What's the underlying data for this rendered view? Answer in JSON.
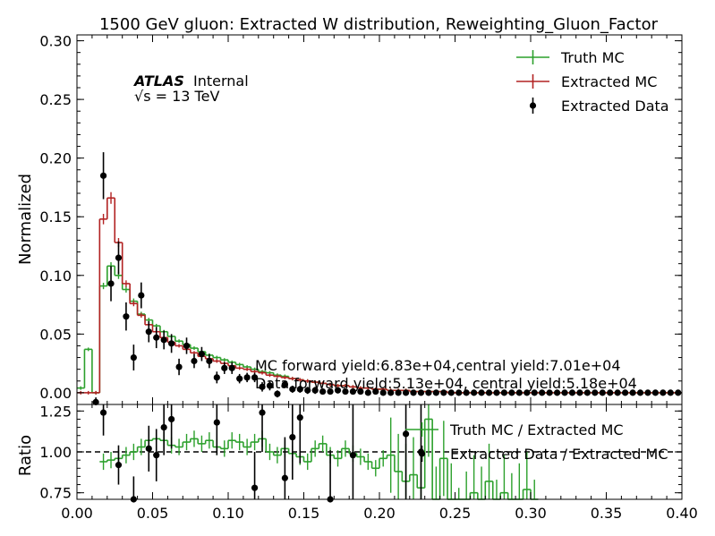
{
  "chart_data": [
    {
      "type": "line",
      "title": "1500 GeV gluon: Extracted W distribution, Reweighting_Gluon_Factor",
      "xlabel": "",
      "ylabel": "Normalized",
      "xlim": [
        0.0,
        0.4
      ],
      "ylim": [
        -0.01,
        0.305
      ],
      "xticks": [
        "0.00",
        "0.05",
        "0.10",
        "0.15",
        "0.20",
        "0.25",
        "0.30",
        "0.35",
        "0.40"
      ],
      "yticks": [
        "0.00",
        "0.05",
        "0.10",
        "0.15",
        "0.20",
        "0.25",
        "0.30"
      ],
      "grid": false,
      "legend_position": "top-right",
      "atlas_label": "ATLAS",
      "atlas_status": "Internal",
      "energy_label": "√s = 13 TeV",
      "annotations": [
        "MC forward yield:6.83e+04,central yield:7.01e+04",
        "Data forward yield:5.13e+04, central yield:5.18e+04"
      ],
      "bin_edges": [
        0.0,
        0.005,
        0.01,
        0.015,
        0.02,
        0.025,
        0.03,
        0.035,
        0.04,
        0.045,
        0.05,
        0.055,
        0.06,
        0.065,
        0.07,
        0.075,
        0.08,
        0.085,
        0.09,
        0.095,
        0.1,
        0.105,
        0.11,
        0.115,
        0.12,
        0.125,
        0.13,
        0.135,
        0.14,
        0.145,
        0.15,
        0.155,
        0.16,
        0.165,
        0.17,
        0.175,
        0.18,
        0.185,
        0.19,
        0.195,
        0.2,
        0.205,
        0.21,
        0.215,
        0.22,
        0.225,
        0.23,
        0.235,
        0.24,
        0.245,
        0.25,
        0.255,
        0.26,
        0.265,
        0.27,
        0.275,
        0.28,
        0.285,
        0.29,
        0.295,
        0.3,
        0.305,
        0.31,
        0.315,
        0.32,
        0.325,
        0.33,
        0.335,
        0.34,
        0.345,
        0.35,
        0.355,
        0.36,
        0.365,
        0.37,
        0.375,
        0.38,
        0.385,
        0.39,
        0.395,
        0.4
      ],
      "series": [
        {
          "name": "Truth MC",
          "color": "#2ca02c",
          "style": "step",
          "values": [
            0.004,
            0.037,
            0.0,
            0.091,
            0.108,
            0.1,
            0.088,
            0.078,
            0.067,
            0.062,
            0.057,
            0.052,
            0.048,
            0.044,
            0.041,
            0.038,
            0.035,
            0.032,
            0.03,
            0.028,
            0.026,
            0.024,
            0.022,
            0.02,
            0.018,
            0.017,
            0.015,
            0.014,
            0.012,
            0.011,
            0.01,
            0.009,
            0.008,
            0.007,
            0.006,
            0.006,
            0.005,
            0.004,
            0.004,
            0.003,
            0.003,
            0.002,
            0.002,
            0.002,
            0.001,
            0.001,
            0.001,
            0.001,
            0.001,
            0.0,
            0.0,
            0.0,
            0.0,
            0.0,
            0.0,
            0.0,
            0.0,
            0.0,
            0.0,
            0.0,
            0.0,
            0.0,
            0.0,
            0.0,
            0.0,
            0.0,
            0.0,
            0.0,
            0.0,
            0.0,
            0.0,
            0.0,
            0.0,
            0.0,
            0.0,
            0.0,
            0.0,
            0.0,
            0.0,
            0.0
          ]
        },
        {
          "name": "Extracted MC",
          "color": "#b22222",
          "style": "step",
          "values": [
            0.0,
            0.0,
            0.0,
            0.148,
            0.166,
            0.128,
            0.093,
            0.076,
            0.066,
            0.058,
            0.052,
            0.047,
            0.043,
            0.04,
            0.037,
            0.034,
            0.031,
            0.029,
            0.027,
            0.025,
            0.023,
            0.021,
            0.02,
            0.018,
            0.017,
            0.015,
            0.014,
            0.013,
            0.012,
            0.011,
            0.01,
            0.009,
            0.008,
            0.007,
            0.006,
            0.006,
            0.005,
            0.004,
            0.004,
            0.003,
            0.003,
            0.002,
            0.002,
            0.002,
            0.001,
            0.001,
            0.001,
            0.001,
            0.001,
            0.0,
            0.0,
            0.0,
            0.0,
            0.0,
            0.0,
            0.0,
            0.0,
            0.0,
            0.0,
            0.0,
            0.0,
            0.0,
            0.0,
            0.0,
            0.0,
            0.0,
            0.0,
            0.0,
            0.0,
            0.0,
            0.0,
            0.0,
            0.0,
            0.0,
            0.0,
            0.0,
            0.0,
            0.0,
            0.0,
            0.0
          ]
        },
        {
          "name": "Extracted Data",
          "color": "#000000",
          "style": "points",
          "points": [
            {
              "x": 0.0125,
              "y": -0.008,
              "err": 0.004
            },
            {
              "x": 0.0175,
              "y": 0.185,
              "err": 0.02
            },
            {
              "x": 0.0225,
              "y": 0.093,
              "err": 0.015
            },
            {
              "x": 0.0275,
              "y": 0.115,
              "err": 0.014
            },
            {
              "x": 0.0325,
              "y": 0.065,
              "err": 0.012
            },
            {
              "x": 0.0375,
              "y": 0.03,
              "err": 0.011
            },
            {
              "x": 0.0425,
              "y": 0.083,
              "err": 0.011
            },
            {
              "x": 0.0475,
              "y": 0.052,
              "err": 0.009
            },
            {
              "x": 0.0525,
              "y": 0.047,
              "err": 0.009
            },
            {
              "x": 0.0575,
              "y": 0.045,
              "err": 0.008
            },
            {
              "x": 0.0625,
              "y": 0.042,
              "err": 0.008
            },
            {
              "x": 0.0675,
              "y": 0.022,
              "err": 0.007
            },
            {
              "x": 0.0725,
              "y": 0.04,
              "err": 0.007
            },
            {
              "x": 0.0775,
              "y": 0.027,
              "err": 0.006
            },
            {
              "x": 0.0825,
              "y": 0.033,
              "err": 0.006
            },
            {
              "x": 0.0875,
              "y": 0.027,
              "err": 0.006
            },
            {
              "x": 0.0925,
              "y": 0.013,
              "err": 0.005
            },
            {
              "x": 0.0975,
              "y": 0.021,
              "err": 0.005
            },
            {
              "x": 0.1025,
              "y": 0.021,
              "err": 0.005
            },
            {
              "x": 0.1075,
              "y": 0.012,
              "err": 0.004
            },
            {
              "x": 0.1125,
              "y": 0.013,
              "err": 0.004
            },
            {
              "x": 0.1175,
              "y": 0.013,
              "err": 0.004
            },
            {
              "x": 0.1225,
              "y": 0.005,
              "err": 0.004
            },
            {
              "x": 0.1275,
              "y": 0.006,
              "err": 0.004
            },
            {
              "x": 0.1325,
              "y": -0.001,
              "err": 0.003
            },
            {
              "x": 0.1375,
              "y": 0.007,
              "err": 0.003
            },
            {
              "x": 0.1425,
              "y": 0.003,
              "err": 0.003
            },
            {
              "x": 0.1475,
              "y": 0.003,
              "err": 0.003
            },
            {
              "x": 0.1525,
              "y": 0.002,
              "err": 0.003
            },
            {
              "x": 0.1575,
              "y": 0.002,
              "err": 0.003
            },
            {
              "x": 0.1625,
              "y": 0.001,
              "err": 0.002
            },
            {
              "x": 0.1675,
              "y": 0.001,
              "err": 0.002
            },
            {
              "x": 0.1725,
              "y": 0.002,
              "err": 0.002
            },
            {
              "x": 0.1775,
              "y": 0.001,
              "err": 0.002
            },
            {
              "x": 0.1825,
              "y": 0.001,
              "err": 0.002
            },
            {
              "x": 0.1875,
              "y": 0.001,
              "err": 0.002
            },
            {
              "x": 0.1925,
              "y": 0.0,
              "err": 0.002
            },
            {
              "x": 0.1975,
              "y": 0.001,
              "err": 0.002
            },
            {
              "x": 0.2025,
              "y": 0.0,
              "err": 0.002
            },
            {
              "x": 0.2075,
              "y": 0.0,
              "err": 0.002
            },
            {
              "x": 0.2125,
              "y": 0.0,
              "err": 0.002
            },
            {
              "x": 0.2175,
              "y": 0.0,
              "err": 0.002
            },
            {
              "x": 0.2225,
              "y": 0.0,
              "err": 0.002
            },
            {
              "x": 0.2275,
              "y": 0.0,
              "err": 0.002
            },
            {
              "x": 0.2325,
              "y": 0.0,
              "err": 0.002
            },
            {
              "x": 0.2375,
              "y": 0.0,
              "err": 0.002
            },
            {
              "x": 0.2425,
              "y": 0.0,
              "err": 0.002
            },
            {
              "x": 0.2475,
              "y": 0.0,
              "err": 0.002
            },
            {
              "x": 0.2525,
              "y": 0.0,
              "err": 0.002
            },
            {
              "x": 0.2575,
              "y": 0.0,
              "err": 0.002
            },
            {
              "x": 0.2625,
              "y": 0.0,
              "err": 0.002
            },
            {
              "x": 0.2675,
              "y": 0.0,
              "err": 0.002
            },
            {
              "x": 0.2725,
              "y": 0.0,
              "err": 0.002
            },
            {
              "x": 0.2775,
              "y": 0.0,
              "err": 0.002
            },
            {
              "x": 0.2825,
              "y": 0.0,
              "err": 0.002
            },
            {
              "x": 0.2875,
              "y": 0.0,
              "err": 0.002
            },
            {
              "x": 0.2925,
              "y": 0.0,
              "err": 0.002
            },
            {
              "x": 0.2975,
              "y": 0.0,
              "err": 0.002
            },
            {
              "x": 0.3025,
              "y": 0.0,
              "err": 0.002
            },
            {
              "x": 0.3075,
              "y": 0.0,
              "err": 0.002
            },
            {
              "x": 0.3125,
              "y": 0.0,
              "err": 0.002
            },
            {
              "x": 0.3175,
              "y": 0.0,
              "err": 0.002
            },
            {
              "x": 0.3225,
              "y": 0.0,
              "err": 0.002
            },
            {
              "x": 0.3275,
              "y": 0.0,
              "err": 0.002
            },
            {
              "x": 0.3325,
              "y": 0.0,
              "err": 0.002
            },
            {
              "x": 0.3375,
              "y": 0.0,
              "err": 0.002
            },
            {
              "x": 0.3425,
              "y": 0.0,
              "err": 0.002
            },
            {
              "x": 0.3475,
              "y": 0.0,
              "err": 0.002
            },
            {
              "x": 0.3525,
              "y": 0.0,
              "err": 0.002
            },
            {
              "x": 0.3575,
              "y": 0.0,
              "err": 0.002
            },
            {
              "x": 0.3625,
              "y": 0.0,
              "err": 0.002
            },
            {
              "x": 0.3675,
              "y": 0.0,
              "err": 0.002
            },
            {
              "x": 0.3725,
              "y": 0.0,
              "err": 0.002
            },
            {
              "x": 0.3775,
              "y": 0.0,
              "err": 0.002
            },
            {
              "x": 0.3825,
              "y": 0.0,
              "err": 0.002
            },
            {
              "x": 0.3875,
              "y": 0.0,
              "err": 0.002
            },
            {
              "x": 0.3925,
              "y": 0.0,
              "err": 0.002
            },
            {
              "x": 0.3975,
              "y": 0.0,
              "err": 0.002
            }
          ]
        }
      ]
    },
    {
      "type": "line",
      "title": "",
      "xlabel": "",
      "ylabel": "Ratio",
      "xlim": [
        0.0,
        0.4
      ],
      "ylim": [
        0.71,
        1.29
      ],
      "xticks": [
        "0.00",
        "0.05",
        "0.10",
        "0.15",
        "0.20",
        "0.25",
        "0.30",
        "0.35",
        "0.40"
      ],
      "yticks": [
        "0.75",
        "1.00",
        "1.25"
      ],
      "grid": false,
      "legend_position": "top-right",
      "reference_line": 1.0,
      "series": [
        {
          "name": "Truth MC / Extracted MC",
          "color": "#2ca02c",
          "style": "step",
          "values": [
            null,
            null,
            null,
            0.94,
            0.95,
            0.96,
            0.98,
            1.0,
            1.03,
            1.07,
            1.08,
            1.07,
            1.04,
            1.03,
            1.06,
            1.08,
            1.05,
            1.07,
            1.03,
            1.02,
            1.07,
            1.06,
            1.03,
            1.06,
            1.08,
            1.0,
            0.98,
            1.02,
            0.99,
            0.97,
            0.94,
            1.02,
            1.05,
            0.98,
            0.96,
            1.02,
            0.99,
            0.97,
            0.94,
            0.9,
            0.96,
            0.98,
            0.88,
            0.82,
            0.86,
            0.78,
            1.2,
            0.68,
            0.96,
            0.7,
            0.55,
            0.65,
            0.75,
            0.68,
            0.82,
            0.6,
            0.75,
            0.64,
            0.7,
            0.77,
            0.6,
            null,
            null,
            null,
            null,
            null,
            null,
            null,
            null,
            null,
            null,
            null,
            null,
            null,
            null,
            null,
            null,
            null,
            null,
            null
          ]
        },
        {
          "name": "Extracted Data / Extracted MC",
          "color": "#000000",
          "style": "points",
          "points": [
            {
              "x": 0.0175,
              "y": 1.24,
              "err": 0.14
            },
            {
              "x": 0.0275,
              "y": 0.92,
              "err": 0.12
            },
            {
              "x": 0.0375,
              "y": 0.71,
              "err": 0.14
            },
            {
              "x": 0.0475,
              "y": 1.02,
              "err": 0.14
            },
            {
              "x": 0.0525,
              "y": 0.98,
              "err": 0.16
            },
            {
              "x": 0.0575,
              "y": 1.15,
              "err": 0.17
            },
            {
              "x": 0.0625,
              "y": 1.2,
              "err": 0.18
            },
            {
              "x": 0.0925,
              "y": 1.18,
              "err": 0.2
            },
            {
              "x": 0.1175,
              "y": 0.78,
              "err": 0.22
            },
            {
              "x": 0.1225,
              "y": 1.24,
              "err": 0.24
            },
            {
              "x": 0.1375,
              "y": 0.84,
              "err": 0.25
            },
            {
              "x": 0.1425,
              "y": 1.09,
              "err": 0.26
            },
            {
              "x": 0.1475,
              "y": 1.21,
              "err": 0.28
            },
            {
              "x": 0.1675,
              "y": 0.71,
              "err": 0.3
            },
            {
              "x": 0.1825,
              "y": 0.98,
              "err": 0.35
            },
            {
              "x": 0.2175,
              "y": 1.11,
              "err": 0.4
            },
            {
              "x": 0.2275,
              "y": 1.0,
              "err": 0.45
            }
          ]
        }
      ]
    }
  ]
}
